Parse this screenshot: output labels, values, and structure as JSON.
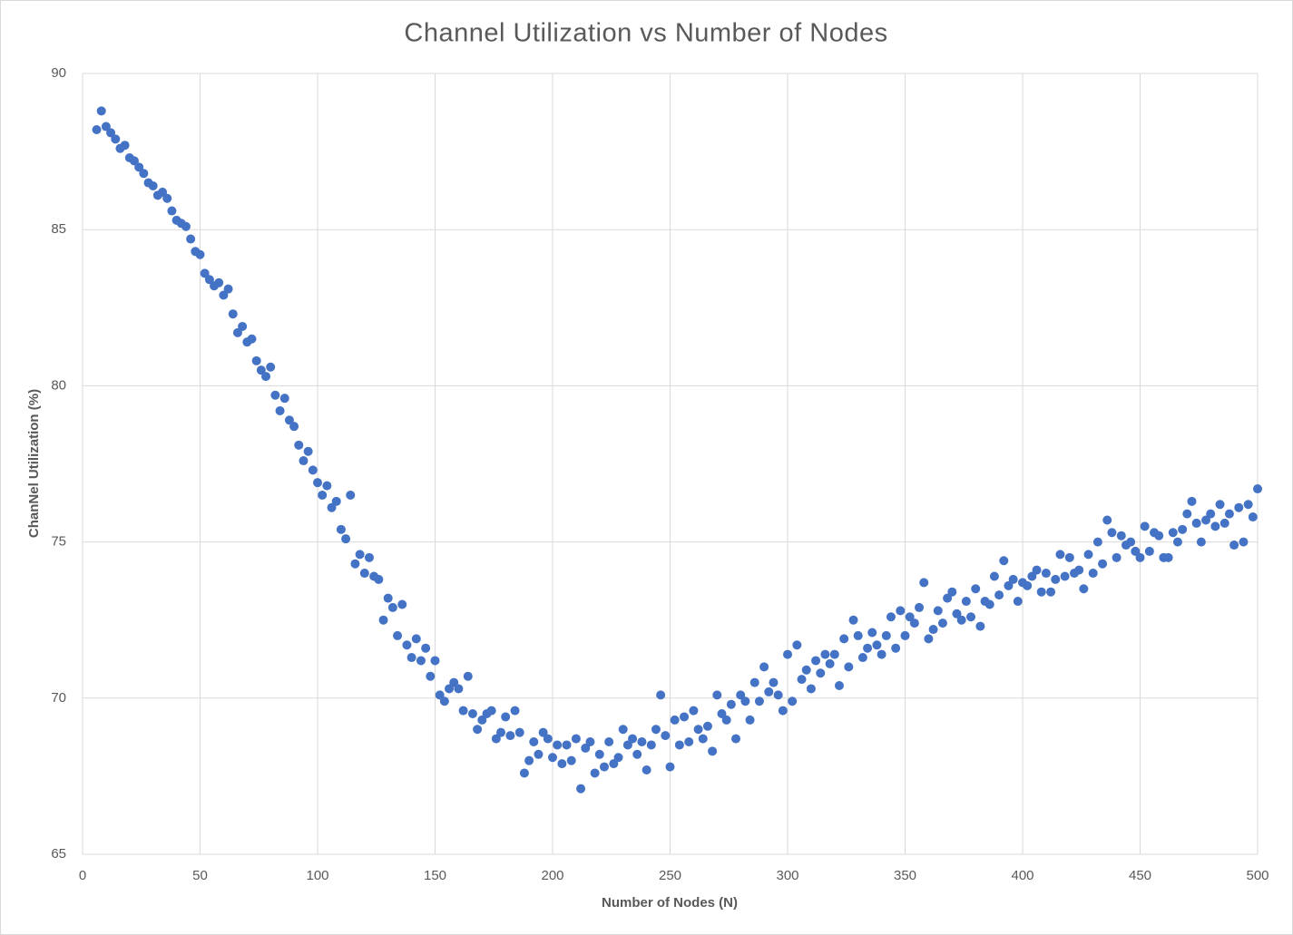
{
  "chart_data": {
    "type": "scatter",
    "title": "Channel  Utilization  vs  Number  of  Nodes",
    "x_label": "Number of Nodes (N)",
    "y_label": "ChanNel Utilization (%)",
    "color": "#4472c4",
    "grid": true,
    "xlim": [
      0,
      500
    ],
    "xticks": [
      0,
      50,
      100,
      150,
      200,
      250,
      300,
      350,
      400,
      450,
      500
    ],
    "ylim": [
      65,
      90
    ],
    "yticks": [
      65,
      70,
      75,
      80,
      85,
      90
    ],
    "x": [
      6,
      8,
      10,
      12,
      14,
      16,
      18,
      20,
      22,
      24,
      26,
      28,
      30,
      32,
      34,
      36,
      38,
      40,
      42,
      44,
      46,
      48,
      50,
      52,
      54,
      56,
      58,
      60,
      62,
      64,
      66,
      68,
      70,
      72,
      74,
      76,
      78,
      80,
      82,
      84,
      86,
      88,
      90,
      92,
      94,
      96,
      98,
      100,
      102,
      104,
      106,
      108,
      110,
      112,
      114,
      116,
      118,
      120,
      122,
      124,
      126,
      128,
      130,
      132,
      134,
      136,
      138,
      140,
      142,
      144,
      146,
      148,
      150,
      152,
      154,
      156,
      158,
      160,
      162,
      164,
      166,
      168,
      170,
      172,
      174,
      176,
      178,
      180,
      182,
      184,
      186,
      188,
      190,
      192,
      194,
      196,
      198,
      200,
      202,
      204,
      206,
      208,
      210,
      212,
      214,
      216,
      218,
      220,
      222,
      224,
      226,
      228,
      230,
      232,
      234,
      236,
      238,
      240,
      242,
      244,
      246,
      248,
      250,
      252,
      254,
      256,
      258,
      260,
      262,
      264,
      266,
      268,
      270,
      272,
      274,
      276,
      278,
      280,
      282,
      284,
      286,
      288,
      290,
      292,
      294,
      296,
      298,
      300,
      302,
      304,
      306,
      308,
      310,
      312,
      314,
      316,
      318,
      320,
      322,
      324,
      326,
      328,
      330,
      332,
      334,
      336,
      338,
      340,
      342,
      344,
      346,
      348,
      350,
      352,
      354,
      356,
      358,
      360,
      362,
      364,
      366,
      368,
      370,
      372,
      374,
      376,
      378,
      380,
      382,
      384,
      386,
      388,
      390,
      392,
      394,
      396,
      398,
      400,
      402,
      404,
      406,
      408,
      410,
      412,
      414,
      416,
      418,
      420,
      422,
      424,
      426,
      428,
      430,
      432,
      434,
      436,
      438,
      440,
      442,
      444,
      446,
      448,
      450,
      452,
      454,
      456,
      458,
      460,
      462,
      464,
      466,
      468,
      470,
      472,
      474,
      476,
      478,
      480,
      482,
      484,
      486,
      488,
      490,
      492,
      494,
      496,
      498,
      500
    ],
    "values": [
      88.2,
      88.8,
      88.3,
      88.1,
      87.9,
      87.6,
      87.7,
      87.3,
      87.2,
      87.0,
      86.8,
      86.5,
      86.4,
      86.1,
      86.2,
      86.0,
      85.6,
      85.3,
      85.2,
      85.1,
      84.7,
      84.3,
      84.2,
      83.6,
      83.4,
      83.2,
      83.3,
      82.9,
      83.1,
      82.3,
      81.7,
      81.9,
      81.4,
      81.5,
      80.8,
      80.5,
      80.3,
      80.6,
      79.7,
      79.2,
      79.6,
      78.9,
      78.7,
      78.1,
      77.6,
      77.9,
      77.3,
      76.9,
      76.5,
      76.8,
      76.1,
      76.3,
      75.4,
      75.1,
      76.5,
      74.3,
      74.6,
      74.0,
      74.5,
      73.9,
      73.8,
      72.5,
      73.2,
      72.9,
      72.0,
      73.0,
      71.7,
      71.3,
      71.9,
      71.2,
      71.6,
      70.7,
      71.2,
      70.1,
      69.9,
      70.3,
      70.5,
      70.3,
      69.6,
      70.7,
      69.5,
      69.0,
      69.3,
      69.5,
      69.6,
      68.7,
      68.9,
      69.4,
      68.8,
      69.6,
      68.9,
      67.6,
      68.0,
      68.6,
      68.2,
      68.9,
      68.7,
      68.1,
      68.5,
      67.9,
      68.5,
      68.0,
      68.7,
      67.1,
      68.4,
      68.6,
      67.6,
      68.2,
      67.8,
      68.6,
      67.9,
      68.1,
      69.0,
      68.5,
      68.7,
      68.2,
      68.6,
      67.7,
      68.5,
      69.0,
      70.1,
      68.8,
      67.8,
      69.3,
      68.5,
      69.4,
      68.6,
      69.6,
      69.0,
      68.7,
      69.1,
      68.3,
      70.1,
      69.5,
      69.3,
      69.8,
      68.7,
      70.1,
      69.9,
      69.3,
      70.5,
      69.9,
      71.0,
      70.2,
      70.5,
      70.1,
      69.6,
      71.4,
      69.9,
      71.7,
      70.6,
      70.9,
      70.3,
      71.2,
      70.8,
      71.4,
      71.1,
      71.4,
      70.4,
      71.9,
      71.0,
      72.5,
      72.0,
      71.3,
      71.6,
      72.1,
      71.7,
      71.4,
      72.0,
      72.6,
      71.6,
      72.8,
      72.0,
      72.6,
      72.4,
      72.9,
      73.7,
      71.9,
      72.2,
      72.8,
      72.4,
      73.2,
      73.4,
      72.7,
      72.5,
      73.1,
      72.6,
      73.5,
      72.3,
      73.1,
      73.0,
      73.9,
      73.3,
      74.4,
      73.6,
      73.8,
      73.1,
      73.7,
      73.6,
      73.9,
      74.1,
      73.4,
      74.0,
      73.4,
      73.8,
      74.6,
      73.9,
      74.5,
      74.0,
      74.1,
      73.5,
      74.6,
      74.0,
      75.0,
      74.3,
      75.7,
      75.3,
      74.5,
      75.2,
      74.9,
      75.0,
      74.7,
      74.5,
      75.5,
      74.7,
      75.3,
      75.2,
      74.5,
      74.5,
      75.3,
      75.0,
      75.4,
      75.9,
      76.3,
      75.6,
      75.0,
      75.7,
      75.9,
      75.5,
      76.2,
      75.6,
      75.9,
      74.9,
      76.1,
      75.0,
      76.2,
      75.8,
      76.7
    ]
  }
}
